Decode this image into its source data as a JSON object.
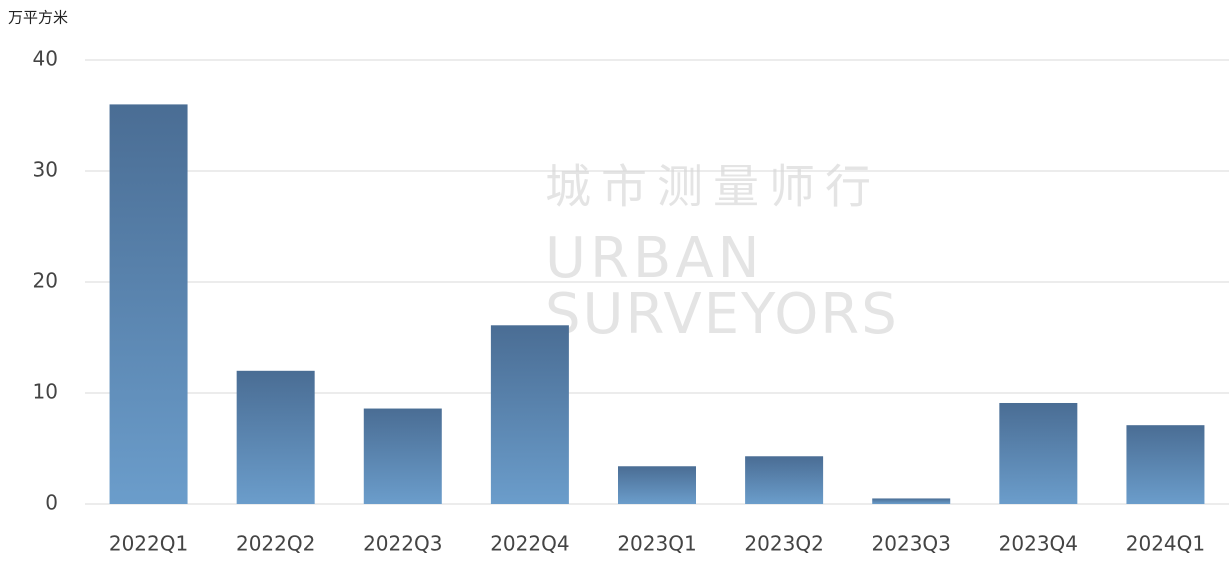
{
  "chart_data": {
    "type": "bar",
    "y_label": "万平方米",
    "watermark": [
      "城市测量师行",
      "URBAN",
      "SURVEYORS"
    ],
    "categories": [
      "2022Q1",
      "2022Q2",
      "2022Q3",
      "2022Q4",
      "2023Q1",
      "2023Q2",
      "2023Q3",
      "2023Q4",
      "2024Q1"
    ],
    "values": [
      36,
      12,
      8.6,
      16.1,
      3.4,
      4.3,
      0.5,
      9.1,
      7.1
    ],
    "color": [
      "#4a6d94",
      "#6b9dcb"
    ],
    "ylim": [
      0,
      40
    ],
    "yticks": [
      0,
      10,
      20,
      30,
      40
    ],
    "grid": true
  }
}
